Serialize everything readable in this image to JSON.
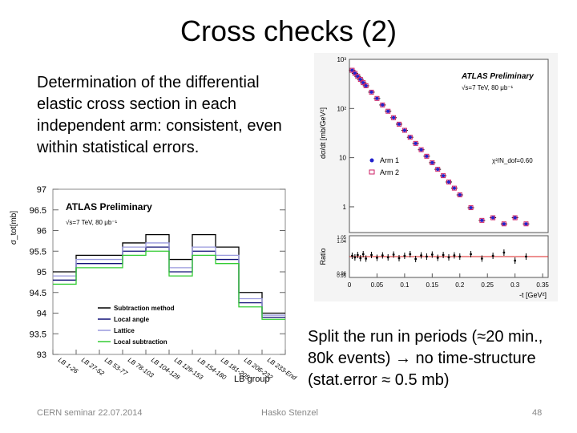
{
  "slide": {
    "title": "Cross checks (2)",
    "text_left": "Determination of the differential elastic cross section in each independent arm: consistent, even within statistical errors.",
    "text_right_prefix": "Split the run in periods (≈20 min., 80k events)",
    "text_right_suffix": "no time-structure (stat.error ≈ 0.5 mb)",
    "arrow_icon": "right-arrow-icon",
    "footer_left": "CERN seminar 22.07.2014",
    "footer_center": "Hasko Stenzel",
    "page_number": "48"
  },
  "chart_data": [
    {
      "type": "scatter",
      "label": "ATLAS Preliminary",
      "sublabel": "√s=7 TeV, 80 μb⁻¹",
      "xlabel": "-t [GeV²]",
      "ylabel": "dσ/dt [mb/GeV²]",
      "ylabel_ratio": "Ratio",
      "y_log": true,
      "ylim": [
        0.3,
        1000
      ],
      "xlim": [
        0,
        0.36
      ],
      "x_ticks": [
        "0",
        "0.05",
        "0.1",
        "0.15",
        "0.2",
        "0.25",
        "0.3",
        "0.35"
      ],
      "y_ticks": [
        "10³",
        "10²",
        "10",
        "1"
      ],
      "ratio_ticks": [
        "1.05",
        "1.04",
        "0.96",
        "0.95"
      ],
      "legend": [
        "Arm 1",
        "Arm 2"
      ],
      "annotation": "χ²/N_dof=0.60",
      "series": [
        {
          "name": "Arm 1",
          "color": "#2222cc"
        },
        {
          "name": "Arm 2",
          "color": "#cc2266"
        }
      ],
      "x": [
        0.005,
        0.01,
        0.015,
        0.02,
        0.025,
        0.03,
        0.04,
        0.05,
        0.06,
        0.07,
        0.08,
        0.09,
        0.1,
        0.11,
        0.12,
        0.13,
        0.14,
        0.15,
        0.16,
        0.17,
        0.18,
        0.19,
        0.2,
        0.22,
        0.24,
        0.26,
        0.28,
        0.3,
        0.32
      ],
      "y": [
        600,
        520,
        450,
        390,
        335,
        290,
        215,
        160,
        118,
        88,
        65,
        48,
        36,
        26,
        19.5,
        14.5,
        10.7,
        7.9,
        5.8,
        4.3,
        3.2,
        2.4,
        1.75,
        0.96,
        0.53,
        0.6,
        0.45,
        0.6,
        0.45
      ],
      "ratio": [
        1.002,
        0.998,
        1.004,
        0.996,
        1.006,
        0.995,
        1.004,
        0.997,
        1.003,
        0.998,
        1.005,
        0.996,
        1.002,
        1.006,
        0.994,
        1.003,
        1.0,
        1.005,
        0.997,
        1.004,
        0.998,
        1.003,
        1.0,
        1.006,
        0.995,
        1.002,
        1.01,
        0.99,
        1.0
      ]
    },
    {
      "type": "line",
      "label": "ATLAS Preliminary",
      "sublabel": "√s=7 TeV, 80 μb⁻¹",
      "xlabel": "LB group",
      "ylabel": "σ_tot[mb]",
      "ylim": [
        93,
        97
      ],
      "y_ticks": [
        "97",
        "96.5",
        "96",
        "95.5",
        "95",
        "94.5",
        "94",
        "93.5",
        "93"
      ],
      "categories": [
        "LB 1-26",
        "LB 27-52",
        "LB 53-77",
        "LB 78-103",
        "LB 104-128",
        "LB 129-153",
        "LB 154-180",
        "LB 181-205",
        "LB 206-232",
        "LB 233-End"
      ],
      "series": [
        {
          "name": "Subtraction method",
          "color": "#000000",
          "values": [
            95.0,
            95.4,
            95.4,
            95.7,
            95.9,
            95.3,
            95.9,
            95.6,
            94.5,
            94.0
          ]
        },
        {
          "name": "Local angle",
          "color": "#111177",
          "values": [
            94.8,
            95.2,
            95.2,
            95.5,
            95.6,
            95.0,
            95.5,
            95.3,
            94.25,
            93.9
          ]
        },
        {
          "name": "Lattice",
          "color": "#9999dd",
          "values": [
            94.9,
            95.3,
            95.3,
            95.6,
            95.7,
            95.1,
            95.6,
            95.4,
            94.35,
            93.95
          ]
        },
        {
          "name": "Local subtraction",
          "color": "#33cc33",
          "values": [
            94.7,
            95.1,
            95.1,
            95.4,
            95.5,
            94.9,
            95.4,
            95.2,
            94.15,
            93.85
          ]
        }
      ]
    }
  ]
}
